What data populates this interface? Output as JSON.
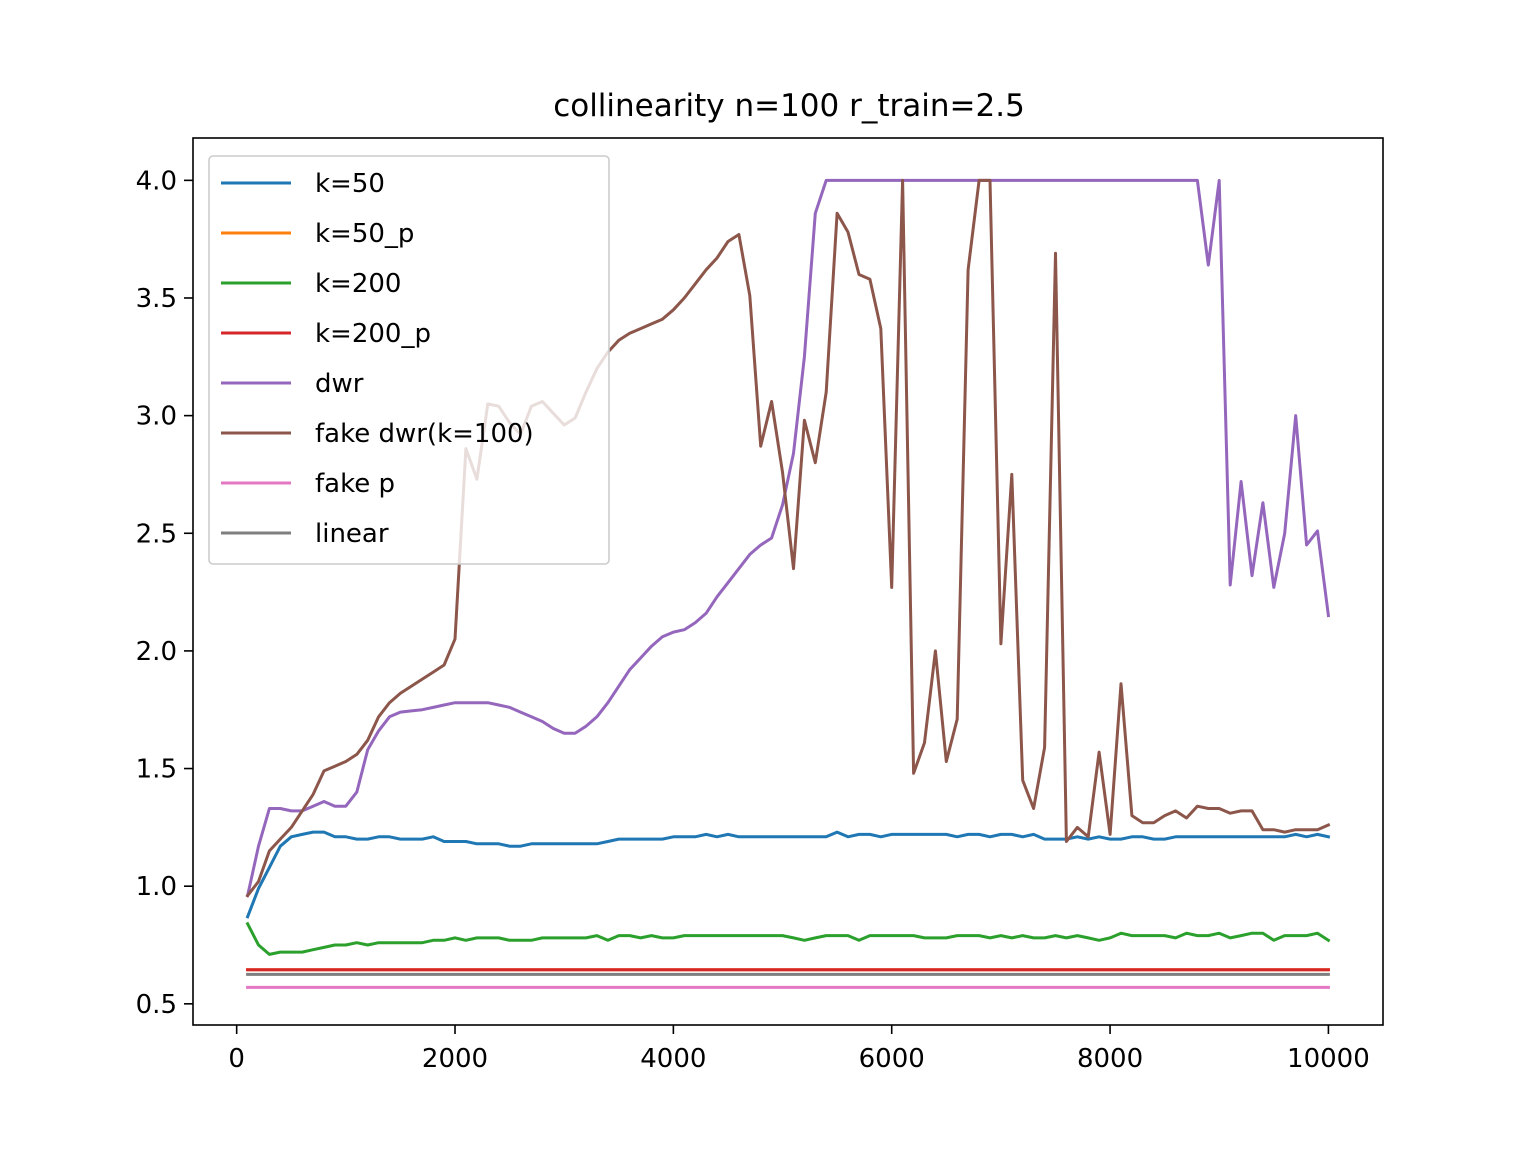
{
  "chart_data": {
    "type": "line",
    "title": "collinearity n=100 r_train=2.5",
    "xlabel": "",
    "ylabel": "",
    "xlim": [
      -400,
      10500
    ],
    "ylim": [
      0.41,
      4.18
    ],
    "xticks": [
      0,
      2000,
      4000,
      6000,
      8000,
      10000
    ],
    "xtick_labels": [
      "0",
      "2000",
      "4000",
      "6000",
      "8000",
      "10000"
    ],
    "yticks": [
      0.5,
      1.0,
      1.5,
      2.0,
      2.5,
      3.0,
      3.5,
      4.0
    ],
    "ytick_labels": [
      "0.5",
      "1.0",
      "1.5",
      "2.0",
      "2.5",
      "3.0",
      "3.5",
      "4.0"
    ],
    "grid": false,
    "legend_position": "upper-left",
    "series": [
      {
        "name": "k=50",
        "color": "#1f77b4",
        "x": [
          100,
          200,
          300,
          400,
          500,
          600,
          700,
          800,
          900,
          1000,
          1100,
          1200,
          1300,
          1400,
          1500,
          1600,
          1700,
          1800,
          1900,
          2000,
          2100,
          2200,
          2300,
          2400,
          2500,
          2600,
          2700,
          2800,
          2900,
          3000,
          3100,
          3200,
          3300,
          3400,
          3500,
          3600,
          3700,
          3800,
          3900,
          4000,
          4100,
          4200,
          4300,
          4400,
          4500,
          4600,
          4700,
          4800,
          4900,
          5000,
          5100,
          5200,
          5300,
          5400,
          5500,
          5600,
          5700,
          5800,
          5900,
          6000,
          6100,
          6200,
          6300,
          6400,
          6500,
          6600,
          6700,
          6800,
          6900,
          7000,
          7100,
          7200,
          7300,
          7400,
          7500,
          7600,
          7700,
          7800,
          7900,
          8000,
          8100,
          8200,
          8300,
          8400,
          8500,
          8600,
          8700,
          8800,
          8900,
          9000,
          9100,
          9200,
          9300,
          9400,
          9500,
          9600,
          9700,
          9800,
          9900,
          10000
        ],
        "y": [
          0.87,
          0.99,
          1.08,
          1.17,
          1.21,
          1.22,
          1.23,
          1.23,
          1.21,
          1.21,
          1.2,
          1.2,
          1.21,
          1.21,
          1.2,
          1.2,
          1.2,
          1.21,
          1.19,
          1.19,
          1.19,
          1.18,
          1.18,
          1.18,
          1.17,
          1.17,
          1.18,
          1.18,
          1.18,
          1.18,
          1.18,
          1.18,
          1.18,
          1.19,
          1.2,
          1.2,
          1.2,
          1.2,
          1.2,
          1.21,
          1.21,
          1.21,
          1.22,
          1.21,
          1.22,
          1.21,
          1.21,
          1.21,
          1.21,
          1.21,
          1.21,
          1.21,
          1.21,
          1.21,
          1.23,
          1.21,
          1.22,
          1.22,
          1.21,
          1.22,
          1.22,
          1.22,
          1.22,
          1.22,
          1.22,
          1.21,
          1.22,
          1.22,
          1.21,
          1.22,
          1.22,
          1.21,
          1.22,
          1.2,
          1.2,
          1.2,
          1.21,
          1.2,
          1.21,
          1.2,
          1.2,
          1.21,
          1.21,
          1.2,
          1.2,
          1.21,
          1.21,
          1.21,
          1.21,
          1.21,
          1.21,
          1.21,
          1.21,
          1.21,
          1.21,
          1.21,
          1.22,
          1.21,
          1.22,
          1.21
        ]
      },
      {
        "name": "k=50_p",
        "color": "#ff7f0e",
        "x": [
          100,
          10000
        ],
        "y": [
          0.645,
          0.645
        ]
      },
      {
        "name": "k=200",
        "color": "#2ca02c",
        "x": [
          100,
          200,
          300,
          400,
          500,
          600,
          700,
          800,
          900,
          1000,
          1100,
          1200,
          1300,
          1400,
          1500,
          1600,
          1700,
          1800,
          1900,
          2000,
          2100,
          2200,
          2300,
          2400,
          2500,
          2600,
          2700,
          2800,
          2900,
          3000,
          3100,
          3200,
          3300,
          3400,
          3500,
          3600,
          3700,
          3800,
          3900,
          4000,
          4100,
          4200,
          4300,
          4400,
          4500,
          4600,
          4700,
          4800,
          4900,
          5000,
          5100,
          5200,
          5300,
          5400,
          5500,
          5600,
          5700,
          5800,
          5900,
          6000,
          6100,
          6200,
          6300,
          6400,
          6500,
          6600,
          6700,
          6800,
          6900,
          7000,
          7100,
          7200,
          7300,
          7400,
          7500,
          7600,
          7700,
          7800,
          7900,
          8000,
          8100,
          8200,
          8300,
          8400,
          8500,
          8600,
          8700,
          8800,
          8900,
          9000,
          9100,
          9200,
          9300,
          9400,
          9500,
          9600,
          9700,
          9800,
          9900,
          10000
        ],
        "y": [
          0.84,
          0.75,
          0.71,
          0.72,
          0.72,
          0.72,
          0.73,
          0.74,
          0.75,
          0.75,
          0.76,
          0.75,
          0.76,
          0.76,
          0.76,
          0.76,
          0.76,
          0.77,
          0.77,
          0.78,
          0.77,
          0.78,
          0.78,
          0.78,
          0.77,
          0.77,
          0.77,
          0.78,
          0.78,
          0.78,
          0.78,
          0.78,
          0.79,
          0.77,
          0.79,
          0.79,
          0.78,
          0.79,
          0.78,
          0.78,
          0.79,
          0.79,
          0.79,
          0.79,
          0.79,
          0.79,
          0.79,
          0.79,
          0.79,
          0.79,
          0.78,
          0.77,
          0.78,
          0.79,
          0.79,
          0.79,
          0.77,
          0.79,
          0.79,
          0.79,
          0.79,
          0.79,
          0.78,
          0.78,
          0.78,
          0.79,
          0.79,
          0.79,
          0.78,
          0.79,
          0.78,
          0.79,
          0.78,
          0.78,
          0.79,
          0.78,
          0.79,
          0.78,
          0.77,
          0.78,
          0.8,
          0.79,
          0.79,
          0.79,
          0.79,
          0.78,
          0.8,
          0.79,
          0.79,
          0.8,
          0.78,
          0.79,
          0.8,
          0.8,
          0.77,
          0.79,
          0.79,
          0.79,
          0.8,
          0.77
        ]
      },
      {
        "name": "k=200_p",
        "color": "#d62728",
        "x": [
          100,
          10000
        ],
        "y": [
          0.645,
          0.645
        ]
      },
      {
        "name": "dwr",
        "color": "#9467bd",
        "x": [
          100,
          200,
          300,
          400,
          500,
          600,
          700,
          800,
          900,
          1000,
          1100,
          1200,
          1300,
          1400,
          1500,
          1600,
          1700,
          1800,
          1900,
          2000,
          2100,
          2200,
          2300,
          2400,
          2500,
          2600,
          2700,
          2800,
          2900,
          3000,
          3100,
          3200,
          3300,
          3400,
          3500,
          3600,
          3700,
          3800,
          3900,
          4000,
          4100,
          4200,
          4300,
          4400,
          4500,
          4600,
          4700,
          4800,
          4900,
          5000,
          5100,
          5200,
          5300,
          5400,
          5500,
          5600,
          5700,
          5800,
          5900,
          6000,
          6100,
          6200,
          6300,
          6400,
          6500,
          6600,
          6700,
          6800,
          6900,
          7000,
          7100,
          7200,
          7300,
          7400,
          7500,
          7600,
          7700,
          7800,
          7900,
          8000,
          8100,
          8200,
          8300,
          8400,
          8500,
          8600,
          8700,
          8800,
          8900,
          9000,
          9100,
          9200,
          9300,
          9400,
          9500,
          9600,
          9700,
          9800,
          9900,
          10000
        ],
        "y": [
          0.96,
          1.17,
          1.33,
          1.33,
          1.32,
          1.32,
          1.34,
          1.36,
          1.34,
          1.34,
          1.4,
          1.58,
          1.66,
          1.72,
          1.74,
          1.745,
          1.75,
          1.76,
          1.77,
          1.78,
          1.78,
          1.78,
          1.78,
          1.77,
          1.76,
          1.74,
          1.72,
          1.7,
          1.67,
          1.65,
          1.65,
          1.68,
          1.72,
          1.78,
          1.85,
          1.92,
          1.97,
          2.02,
          2.06,
          2.08,
          2.09,
          2.12,
          2.16,
          2.23,
          2.29,
          2.35,
          2.41,
          2.45,
          2.48,
          2.62,
          2.84,
          3.25,
          3.86,
          4.0,
          4.0,
          4.0,
          4.0,
          4.0,
          4.0,
          4.0,
          4.0,
          4.0,
          4.0,
          4.0,
          4.0,
          4.0,
          4.0,
          4.0,
          4.0,
          4.0,
          4.0,
          4.0,
          4.0,
          4.0,
          4.0,
          4.0,
          4.0,
          4.0,
          4.0,
          4.0,
          4.0,
          4.0,
          4.0,
          4.0,
          4.0,
          4.0,
          4.0,
          4.0,
          3.64,
          4.0,
          2.28,
          2.72,
          2.32,
          2.63,
          2.27,
          2.5,
          3.0,
          2.45,
          2.51,
          2.15
        ]
      },
      {
        "name": "fake dwr(k=100)",
        "color": "#8c564b",
        "x": [
          100,
          200,
          300,
          400,
          500,
          600,
          700,
          800,
          900,
          1000,
          1100,
          1200,
          1300,
          1400,
          1500,
          1600,
          1700,
          1800,
          1900,
          2000,
          2100,
          2200,
          2300,
          2400,
          2500,
          2600,
          2700,
          2800,
          2900,
          3000,
          3100,
          3200,
          3300,
          3400,
          3500,
          3600,
          3700,
          3800,
          3900,
          4000,
          4100,
          4200,
          4300,
          4400,
          4500,
          4600,
          4700,
          4800,
          4900,
          5000,
          5100,
          5200,
          5300,
          5400,
          5500,
          5600,
          5700,
          5800,
          5900,
          6000,
          6100,
          6200,
          6300,
          6400,
          6500,
          6600,
          6700,
          6800,
          6900,
          7000,
          7100,
          7200,
          7300,
          7400,
          7500,
          7600,
          7700,
          7800,
          7900,
          8000,
          8100,
          8200,
          8300,
          8400,
          8500,
          8600,
          8700,
          8800,
          8900,
          9000,
          9100,
          9200,
          9300,
          9400,
          9500,
          9600,
          9700,
          9800,
          9900,
          10000
        ],
        "y": [
          0.96,
          1.02,
          1.15,
          1.2,
          1.25,
          1.32,
          1.39,
          1.49,
          1.51,
          1.53,
          1.56,
          1.62,
          1.72,
          1.78,
          1.82,
          1.85,
          1.88,
          1.91,
          1.94,
          2.05,
          2.86,
          2.73,
          3.05,
          3.04,
          2.97,
          2.92,
          3.04,
          3.06,
          3.01,
          2.96,
          2.99,
          3.1,
          3.2,
          3.27,
          3.32,
          3.35,
          3.37,
          3.39,
          3.41,
          3.45,
          3.5,
          3.56,
          3.62,
          3.67,
          3.74,
          3.77,
          3.51,
          2.87,
          3.06,
          2.76,
          2.35,
          2.98,
          2.8,
          3.1,
          3.86,
          3.78,
          3.6,
          3.58,
          3.37,
          2.27,
          4.0,
          1.48,
          1.61,
          2.0,
          1.53,
          1.71,
          3.62,
          4.0,
          4.0,
          2.03,
          2.75,
          1.45,
          1.33,
          1.59,
          3.69,
          1.19,
          1.25,
          1.21,
          1.57,
          1.22,
          1.86,
          1.3,
          1.27,
          1.27,
          1.3,
          1.32,
          1.29,
          1.34,
          1.33,
          1.33,
          1.31,
          1.32,
          1.32,
          1.24,
          1.24,
          1.23,
          1.24,
          1.24,
          1.24,
          1.26
        ]
      },
      {
        "name": "fake p",
        "color": "#e377c2",
        "x": [
          100,
          10000
        ],
        "y": [
          0.57,
          0.57
        ]
      },
      {
        "name": "linear",
        "color": "#7f7f7f",
        "x": [
          100,
          10000
        ],
        "y": [
          0.625,
          0.625
        ]
      }
    ]
  }
}
